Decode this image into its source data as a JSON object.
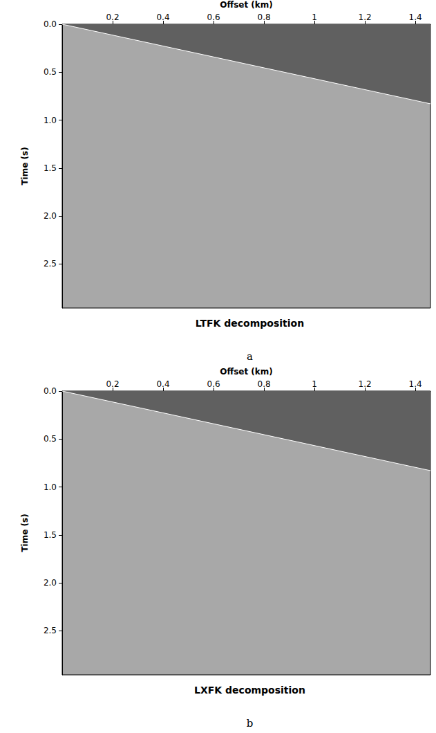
{
  "chart_data": [
    {
      "type": "image",
      "title": "LTFK decomposition",
      "panel_label": "a",
      "x_label": "Offset (km)",
      "y_label": "Time (s)",
      "xlim": [
        0,
        1.46
      ],
      "ylim": [
        0,
        2.96
      ],
      "xticks": [
        0.2,
        0.4,
        0.6,
        0.8,
        1,
        1.2,
        1.4
      ],
      "yticks": [
        {
          "value": 0,
          "label": "0.0"
        },
        0.5,
        {
          "value": 1,
          "label": "1.0"
        },
        1.5,
        {
          "value": 2,
          "label": "2.0"
        },
        2.5
      ],
      "mute": {
        "x": [
          0,
          1.46
        ],
        "y": [
          0,
          0.83
        ]
      }
    },
    {
      "type": "image",
      "title": "LXFK decomposition",
      "panel_label": "b",
      "x_label": "Offset (km)",
      "y_label": "Time (s)",
      "xlim": [
        0,
        1.46
      ],
      "ylim": [
        0,
        2.96
      ],
      "xticks": [
        0.2,
        0.4,
        0.6,
        0.8,
        1,
        1.2,
        1.4
      ],
      "yticks": [
        {
          "value": 0,
          "label": "0.0"
        },
        0.5,
        {
          "value": 1,
          "label": "1.0"
        },
        1.5,
        {
          "value": 2,
          "label": "2.0"
        },
        2.5
      ],
      "mute": {
        "x": [
          0,
          1.46
        ],
        "y": [
          0,
          0.83
        ]
      }
    }
  ]
}
